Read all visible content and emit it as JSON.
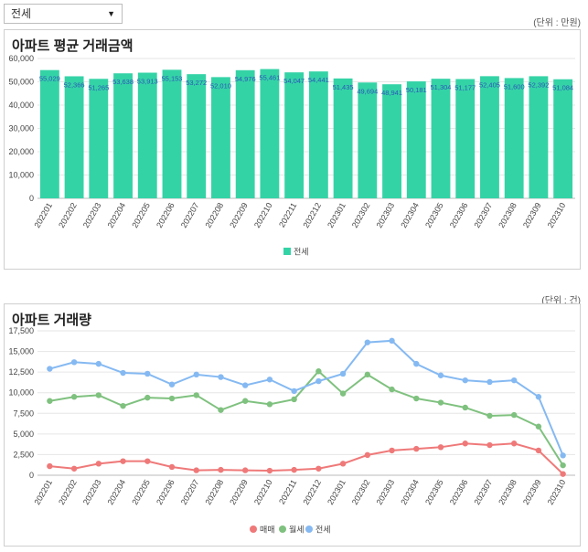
{
  "filter": {
    "selected": "전세"
  },
  "colors": {
    "jeonse_bar": "#34d3a6",
    "sale": "#ef7979",
    "monthly": "#7fc17f",
    "jeonse": "#85b9f2",
    "label": "#2c57b8",
    "grid": "#e6e6e6"
  },
  "chart1": {
    "unit": "(단위 : 만원)",
    "title": "아파트 평균 거래금액"
  },
  "chart2": {
    "unit": "(단위 : 건)",
    "title": "아파트 거래량"
  },
  "chart_data": [
    {
      "type": "bar",
      "title": "아파트 평균 거래금액",
      "categories": [
        "202201",
        "202202",
        "202203",
        "202204",
        "202205",
        "202206",
        "202207",
        "202208",
        "202209",
        "202210",
        "202211",
        "202212",
        "202301",
        "202302",
        "202303",
        "202304",
        "202305",
        "202306",
        "202307",
        "202308",
        "202309",
        "202310"
      ],
      "series": [
        {
          "name": "전세",
          "values": [
            55029,
            52366,
            51265,
            53638,
            53913,
            55153,
            53272,
            52010,
            54976,
            55461,
            54047,
            54441,
            51435,
            49694,
            48941,
            50181,
            51304,
            51177,
            52405,
            51600,
            52392,
            51084
          ]
        }
      ],
      "value_labels": [
        "55,029",
        "52,366",
        "51,265",
        "53,638",
        "53,913",
        "55,153",
        "53,272",
        "52,010",
        "54,976",
        "55,461",
        "54,047",
        "54,441",
        "51,435",
        "49,694",
        "48,941",
        "50,181",
        "51,304",
        "51,177",
        "52,405",
        "51,600",
        "52,392",
        "51,084"
      ],
      "ylim": [
        0,
        60000
      ],
      "yticks": [
        "0",
        "10,000",
        "20,000",
        "30,000",
        "40,000",
        "50,000",
        "60,000"
      ],
      "legend": "bottom-center"
    },
    {
      "type": "line",
      "title": "아파트 거래량",
      "categories": [
        "202201",
        "202202",
        "202203",
        "202204",
        "202205",
        "202206",
        "202207",
        "202208",
        "202209",
        "202210",
        "202211",
        "202212",
        "202301",
        "202302",
        "202303",
        "202304",
        "202305",
        "202306",
        "202307",
        "202308",
        "202309",
        "202310"
      ],
      "series": [
        {
          "name": "매매",
          "values": [
            1100,
            800,
            1400,
            1700,
            1700,
            1000,
            600,
            650,
            600,
            550,
            650,
            800,
            1400,
            2450,
            3000,
            3200,
            3400,
            3850,
            3650,
            3850,
            3000,
            150
          ]
        },
        {
          "name": "월세",
          "values": [
            9000,
            9500,
            9700,
            8400,
            9400,
            9300,
            9700,
            7900,
            9000,
            8600,
            9200,
            12600,
            9900,
            12200,
            10400,
            9300,
            8800,
            8200,
            7200,
            7300,
            5900,
            1200
          ]
        },
        {
          "name": "전세",
          "values": [
            12900,
            13700,
            13500,
            12400,
            12300,
            11000,
            12200,
            11900,
            10900,
            11600,
            10200,
            11400,
            12300,
            16100,
            16300,
            13500,
            12100,
            11500,
            11300,
            11500,
            9500,
            2400
          ]
        }
      ],
      "ylim": [
        0,
        17500
      ],
      "yticks": [
        "0",
        "2,500",
        "5,000",
        "7,500",
        "10,000",
        "12,500",
        "15,000",
        "17,500"
      ],
      "legend": "bottom-center"
    }
  ]
}
